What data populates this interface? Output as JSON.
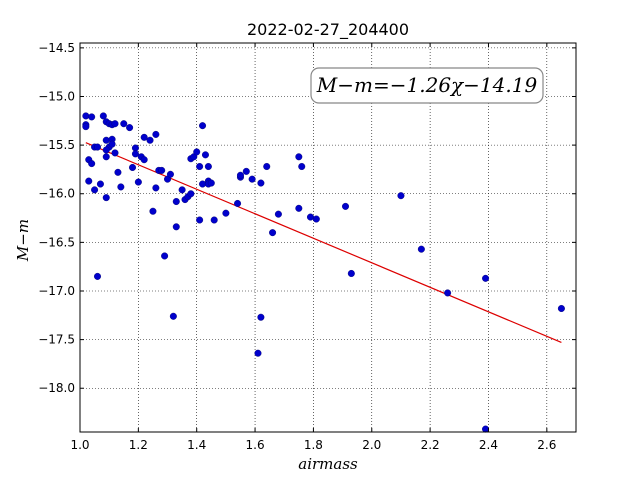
{
  "chart_data": {
    "type": "scatter",
    "title": "2022-02-27_204400",
    "xlabel": "airmass",
    "ylabel": "M−m",
    "xlim": [
      1.0,
      2.7
    ],
    "ylim": [
      -18.45,
      -14.45
    ],
    "y_inverted": true,
    "grid": true,
    "grid_style": "dotted",
    "xticks": [
      "1.0",
      "1.2",
      "1.4",
      "1.6",
      "1.8",
      "2.0",
      "2.2",
      "2.4",
      "2.6"
    ],
    "yticks": [
      "−14.5",
      "−15.0",
      "−15.5",
      "−16.0",
      "−16.5",
      "−17.0",
      "−17.5",
      "−18.0"
    ],
    "annotation": "M−m=−1.26χ−14.19",
    "point_color": "#0000cc",
    "fit_color": "#dd0000",
    "fit": {
      "slope": -1.26,
      "intercept": -14.19,
      "x_range": [
        1.02,
        2.65
      ]
    },
    "points": [
      [
        1.02,
        -15.2
      ],
      [
        1.04,
        -15.21
      ],
      [
        1.02,
        -15.29
      ],
      [
        1.02,
        -15.31
      ],
      [
        1.03,
        -15.65
      ],
      [
        1.04,
        -15.69
      ],
      [
        1.05,
        -15.52
      ],
      [
        1.06,
        -15.52
      ],
      [
        1.03,
        -15.87
      ],
      [
        1.05,
        -15.96
      ],
      [
        1.06,
        -16.85
      ],
      [
        1.07,
        -15.9
      ],
      [
        1.08,
        -15.2
      ],
      [
        1.09,
        -15.26
      ],
      [
        1.1,
        -15.28
      ],
      [
        1.09,
        -15.45
      ],
      [
        1.1,
        -15.52
      ],
      [
        1.09,
        -15.55
      ],
      [
        1.09,
        -15.62
      ],
      [
        1.09,
        -16.04
      ],
      [
        1.11,
        -15.29
      ],
      [
        1.12,
        -15.28
      ],
      [
        1.11,
        -15.44
      ],
      [
        1.11,
        -15.49
      ],
      [
        1.12,
        -15.58
      ],
      [
        1.13,
        -15.78
      ],
      [
        1.14,
        -15.93
      ],
      [
        1.15,
        -15.28
      ],
      [
        1.17,
        -15.32
      ],
      [
        1.18,
        -15.73
      ],
      [
        1.19,
        -15.53
      ],
      [
        1.19,
        -15.59
      ],
      [
        1.2,
        -15.88
      ],
      [
        1.21,
        -15.62
      ],
      [
        1.22,
        -15.65
      ],
      [
        1.22,
        -15.42
      ],
      [
        1.24,
        -15.45
      ],
      [
        1.25,
        -16.18
      ],
      [
        1.26,
        -15.94
      ],
      [
        1.26,
        -15.39
      ],
      [
        1.27,
        -15.76
      ],
      [
        1.28,
        -15.76
      ],
      [
        1.29,
        -16.64
      ],
      [
        1.3,
        -15.85
      ],
      [
        1.31,
        -15.8
      ],
      [
        1.32,
        -17.26
      ],
      [
        1.33,
        -16.08
      ],
      [
        1.33,
        -16.34
      ],
      [
        1.35,
        -15.96
      ],
      [
        1.36,
        -16.06
      ],
      [
        1.37,
        -16.03
      ],
      [
        1.38,
        -15.64
      ],
      [
        1.39,
        -15.62
      ],
      [
        1.4,
        -15.57
      ],
      [
        1.38,
        -16.0
      ],
      [
        1.41,
        -15.72
      ],
      [
        1.41,
        -16.27
      ],
      [
        1.42,
        -15.3
      ],
      [
        1.42,
        -15.9
      ],
      [
        1.43,
        -15.6
      ],
      [
        1.44,
        -15.72
      ],
      [
        1.44,
        -15.87
      ],
      [
        1.44,
        -15.9
      ],
      [
        1.45,
        -15.89
      ],
      [
        1.46,
        -16.27
      ],
      [
        1.5,
        -16.2
      ],
      [
        1.54,
        -16.1
      ],
      [
        1.55,
        -15.83
      ],
      [
        1.55,
        -15.81
      ],
      [
        1.57,
        -15.77
      ],
      [
        1.59,
        -15.85
      ],
      [
        1.61,
        -17.64
      ],
      [
        1.62,
        -17.27
      ],
      [
        1.62,
        -15.89
      ],
      [
        1.64,
        -15.72
      ],
      [
        1.66,
        -16.4
      ],
      [
        1.68,
        -16.21
      ],
      [
        1.75,
        -16.15
      ],
      [
        1.75,
        -15.62
      ],
      [
        1.76,
        -15.72
      ],
      [
        1.79,
        -16.24
      ],
      [
        1.81,
        -16.26
      ],
      [
        1.91,
        -16.13
      ],
      [
        1.93,
        -16.82
      ],
      [
        2.1,
        -16.02
      ],
      [
        2.17,
        -16.57
      ],
      [
        2.26,
        -17.02
      ],
      [
        2.39,
        -16.87
      ],
      [
        2.39,
        -18.42
      ],
      [
        2.65,
        -17.18
      ]
    ]
  }
}
